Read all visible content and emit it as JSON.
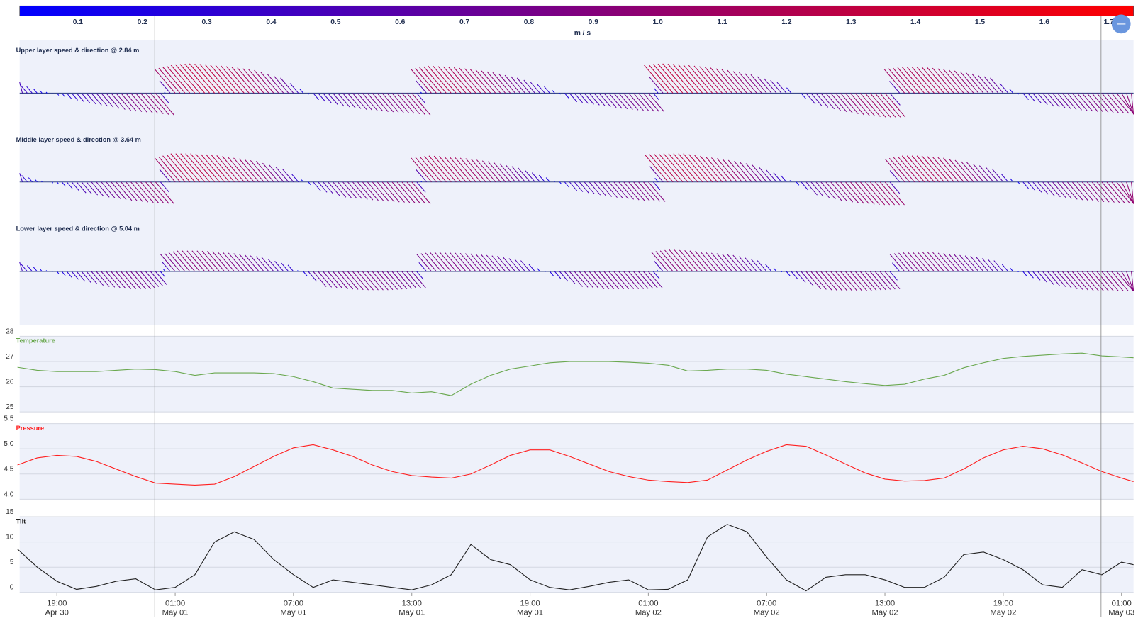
{
  "colorbar": {
    "unit": "m / s",
    "range": [
      0,
      1.75
    ],
    "colors": [
      "#0000ff",
      "#ff0000"
    ],
    "ticks": [
      "0.1",
      "0.2",
      "0.3",
      "0.4",
      "0.5",
      "0.6",
      "0.7",
      "0.8",
      "0.9",
      "1.0",
      "1.1",
      "1.2",
      "1.3",
      "1.4",
      "1.5",
      "1.6",
      "1.7"
    ]
  },
  "zoom_out_button": {
    "icon": "minus-icon",
    "color": "#6a96de"
  },
  "x_axis": {
    "ticks": [
      {
        "time": "19:00",
        "date": "Apr 30"
      },
      {
        "time": "01:00",
        "date": "May 01"
      },
      {
        "time": "07:00",
        "date": "May 01"
      },
      {
        "time": "13:00",
        "date": "May 01"
      },
      {
        "time": "19:00",
        "date": "May 01"
      },
      {
        "time": "01:00",
        "date": "May 02"
      },
      {
        "time": "07:00",
        "date": "May 02"
      },
      {
        "time": "13:00",
        "date": "May 02"
      },
      {
        "time": "19:00",
        "date": "May 02"
      },
      {
        "time": "01:00",
        "date": "May 03"
      }
    ],
    "day_markers": [
      "May 01 00:00",
      "May 02 00:00",
      "May 03 00:00"
    ]
  },
  "chart_data": {
    "type": "line",
    "x": [
      "Apr 30 17:00",
      "Apr 30 18:00",
      "Apr 30 19:00",
      "Apr 30 20:00",
      "Apr 30 21:00",
      "Apr 30 22:00",
      "Apr 30 23:00",
      "May 01 00:00",
      "May 01 01:00",
      "May 01 02:00",
      "May 01 03:00",
      "May 01 04:00",
      "May 01 05:00",
      "May 01 06:00",
      "May 01 07:00",
      "May 01 08:00",
      "May 01 09:00",
      "May 01 10:00",
      "May 01 11:00",
      "May 01 12:00",
      "May 01 13:00",
      "May 01 14:00",
      "May 01 15:00",
      "May 01 16:00",
      "May 01 17:00",
      "May 01 18:00",
      "May 01 19:00",
      "May 01 20:00",
      "May 01 21:00",
      "May 01 22:00",
      "May 01 23:00",
      "May 02 00:00",
      "May 02 01:00",
      "May 02 02:00",
      "May 02 03:00",
      "May 02 04:00",
      "May 02 05:00",
      "May 02 06:00",
      "May 02 07:00",
      "May 02 08:00",
      "May 02 09:00",
      "May 02 10:00",
      "May 02 11:00",
      "May 02 12:00",
      "May 02 13:00",
      "May 02 14:00",
      "May 02 15:00",
      "May 02 16:00",
      "May 02 17:00",
      "May 02 18:00",
      "May 02 19:00",
      "May 02 20:00",
      "May 02 21:00",
      "May 02 22:00",
      "May 02 23:00",
      "May 03 00:00",
      "May 03 01:00",
      "May 03 02:00"
    ],
    "current_layers": [
      {
        "name": "Upper layer speed & direction @ 2.84 m",
        "values": [
          0.6,
          0.2,
          -0.1,
          -0.4,
          -0.6,
          -0.8,
          -0.9,
          -1.0,
          1.1,
          1.3,
          1.35,
          1.3,
          1.2,
          1.05,
          0.7,
          -0.3,
          -0.6,
          -0.75,
          -0.85,
          -0.9,
          -1.0,
          1.1,
          1.25,
          1.2,
          1.1,
          0.95,
          0.7,
          0.3,
          -0.4,
          -0.55,
          -0.7,
          -0.8,
          -0.85,
          1.3,
          1.35,
          1.3,
          1.2,
          1.05,
          0.85,
          0.5,
          -0.5,
          -0.8,
          -1.0,
          -1.1,
          -1.1,
          1.1,
          1.2,
          1.2,
          1.1,
          0.95,
          0.7,
          -0.3,
          -0.6,
          -0.75,
          -0.85,
          -0.9,
          -0.95,
          -1.0
        ]
      },
      {
        "name": "Middle layer speed & direction @ 3.64 m",
        "values": [
          0.5,
          0.1,
          -0.1,
          -0.5,
          -0.7,
          -0.85,
          -0.95,
          -1.0,
          1.1,
          1.3,
          1.3,
          1.25,
          1.1,
          0.95,
          0.6,
          -0.4,
          -0.7,
          -0.8,
          -0.9,
          -0.95,
          -1.0,
          1.1,
          1.2,
          1.15,
          1.05,
          0.9,
          0.65,
          0.2,
          -0.4,
          -0.6,
          -0.75,
          -0.85,
          -0.9,
          1.25,
          1.3,
          1.3,
          1.15,
          1.0,
          0.8,
          0.3,
          -0.6,
          -0.85,
          -1.0,
          -1.05,
          -1.05,
          1.05,
          1.2,
          1.2,
          1.1,
          0.9,
          0.6,
          -0.3,
          -0.65,
          -0.8,
          -0.9,
          -0.95,
          -1.0,
          -1.0
        ]
      },
      {
        "name": "Lower layer speed & direction @ 5.04 m",
        "values": [
          0.5,
          0.2,
          -0.1,
          -0.45,
          -0.7,
          -0.8,
          -0.8,
          -0.6,
          0.8,
          0.95,
          0.95,
          0.9,
          0.8,
          0.65,
          0.3,
          -0.7,
          -0.8,
          -0.85,
          -0.85,
          -0.8,
          -0.75,
          0.8,
          0.9,
          0.85,
          0.8,
          0.7,
          0.5,
          -0.2,
          -0.7,
          -0.8,
          -0.8,
          -0.8,
          -0.75,
          0.9,
          1.0,
          0.95,
          0.85,
          0.75,
          0.5,
          -0.2,
          -0.8,
          -0.9,
          -0.9,
          -0.85,
          -0.8,
          0.8,
          0.9,
          0.9,
          0.8,
          0.7,
          0.5,
          -0.2,
          -0.6,
          -0.8,
          -0.9,
          -0.9,
          -0.9,
          -0.9
        ]
      }
    ],
    "series": [
      {
        "name": "Temperature",
        "color": "#6aa84f",
        "ylim": [
          25,
          28
        ],
        "yticks": [
          "28",
          "27",
          "26",
          "25"
        ],
        "values": [
          26.77,
          26.65,
          26.6,
          26.6,
          26.6,
          26.65,
          26.7,
          26.68,
          26.6,
          26.45,
          26.55,
          26.55,
          26.55,
          26.52,
          26.4,
          26.2,
          25.95,
          25.9,
          25.85,
          25.85,
          25.75,
          25.8,
          25.65,
          26.1,
          26.45,
          26.7,
          26.82,
          26.95,
          27.0,
          27.0,
          27.0,
          26.97,
          26.93,
          26.85,
          26.62,
          26.65,
          26.7,
          26.7,
          26.65,
          26.5,
          26.4,
          26.3,
          26.2,
          26.12,
          26.05,
          26.1,
          26.3,
          26.45,
          26.75,
          26.95,
          27.12,
          27.2,
          27.25,
          27.3,
          27.33,
          27.22,
          27.18,
          27.15
        ]
      },
      {
        "name": "Pressure",
        "color": "#ff2020",
        "ylim": [
          4.0,
          5.5
        ],
        "yticks": [
          "5.5",
          "5.0",
          "4.5",
          "4.0"
        ],
        "values": [
          4.68,
          4.82,
          4.87,
          4.85,
          4.75,
          4.6,
          4.45,
          4.32,
          4.3,
          4.28,
          4.3,
          4.45,
          4.65,
          4.85,
          5.02,
          5.08,
          4.98,
          4.85,
          4.68,
          4.55,
          4.47,
          4.44,
          4.42,
          4.5,
          4.68,
          4.87,
          4.98,
          4.98,
          4.85,
          4.7,
          4.55,
          4.45,
          4.38,
          4.35,
          4.33,
          4.38,
          4.58,
          4.78,
          4.95,
          5.08,
          5.05,
          4.88,
          4.7,
          4.52,
          4.4,
          4.36,
          4.37,
          4.42,
          4.6,
          4.82,
          4.98,
          5.05,
          5.0,
          4.88,
          4.72,
          4.55,
          4.42,
          4.35
        ]
      },
      {
        "name": "Tilt",
        "color": "#222222",
        "ylim": [
          0,
          15
        ],
        "yticks": [
          "15",
          "10",
          "5",
          "0"
        ],
        "values": [
          8.6,
          5,
          2.2,
          0.6,
          1.2,
          2.2,
          2.7,
          0.5,
          1,
          3.5,
          10,
          12,
          10.5,
          6.5,
          3.5,
          1,
          2.5,
          2,
          1.5,
          1,
          0.5,
          1.5,
          3.5,
          9.5,
          6.5,
          5.5,
          2.5,
          1,
          0.5,
          1.2,
          2,
          2.5,
          0.5,
          0.6,
          2.5,
          11,
          13.5,
          12,
          7,
          2.5,
          0.3,
          3,
          3.5,
          3.5,
          2.5,
          1,
          1,
          3,
          7.5,
          8,
          6.5,
          4.5,
          1.5,
          1,
          4.5,
          3.5,
          6,
          5.5
        ]
      }
    ],
    "grid": true
  }
}
